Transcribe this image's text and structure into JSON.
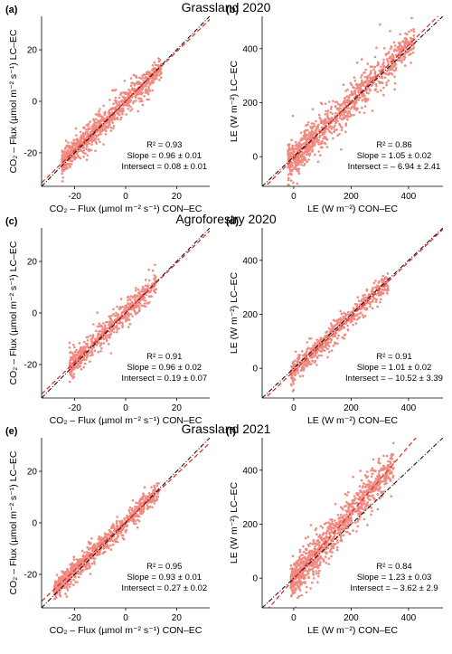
{
  "rows": [
    {
      "title": "Grassland 2020"
    },
    {
      "title": "Agroforestry 2020"
    },
    {
      "title": "Grassland 2021"
    }
  ],
  "colors": {
    "points": "#f08a80",
    "fit_line": "#e8231a",
    "one_to_one": "#000000"
  },
  "chart_data": [
    {
      "panel": "(a)",
      "type": "scatter",
      "xlabel": "CO₂ – Flux (µmol m⁻² s⁻¹) CON–EC",
      "ylabel": "CO₂ – Flux (µmol m⁻² s⁻¹) LC–EC",
      "xlim": [
        -33,
        33
      ],
      "ylim": [
        -33,
        33
      ],
      "xticks": [
        -20,
        0,
        20
      ],
      "yticks": [
        -20,
        0,
        20
      ],
      "stats": {
        "r2": "R² = 0.93",
        "slope": "Slope = 0.96 ± 0.01",
        "intersect": "Intersect = 0.08 ± 0.01"
      },
      "fit": {
        "slope": 0.96,
        "intercept": 0.08
      },
      "cloud": {
        "x_range": [
          -25,
          14
        ],
        "spread": 2.4,
        "n": 900
      }
    },
    {
      "panel": "(b)",
      "type": "scatter",
      "xlabel": "LE (W m⁻²) CON–EC",
      "ylabel": "LE (W m⁻²) LC–EC",
      "xlim": [
        -110,
        520
      ],
      "ylim": [
        -110,
        520
      ],
      "xticks": [
        0,
        200,
        400
      ],
      "yticks": [
        0,
        200,
        400
      ],
      "stats": {
        "r2": "R² = 0.86",
        "slope": "Slope = 1.05 ± 0.02",
        "intersect": "Intersect = – 6.94 ± 2.41"
      },
      "fit": {
        "slope": 1.05,
        "intercept": -6.94
      },
      "cloud": {
        "x_range": [
          -20,
          420
        ],
        "spread": 35,
        "n": 1000
      }
    },
    {
      "panel": "(c)",
      "type": "scatter",
      "xlabel": "CO₂ – Flux (µmol m⁻² s⁻¹) CON–EC",
      "ylabel": "CO₂ – Flux (µmol m⁻² s⁻¹) LC–EC",
      "xlim": [
        -33,
        33
      ],
      "ylim": [
        -33,
        33
      ],
      "xticks": [
        -20,
        0,
        20
      ],
      "yticks": [
        -20,
        0,
        20
      ],
      "stats": {
        "r2": "R² = 0.91",
        "slope": "Slope = 0.96 ± 0.02",
        "intersect": "Intersect = 0.19 ± 0.07"
      },
      "fit": {
        "slope": 0.96,
        "intercept": 0.19
      },
      "cloud": {
        "x_range": [
          -22,
          12
        ],
        "spread": 2.5,
        "n": 600
      }
    },
    {
      "panel": "(d)",
      "type": "scatter",
      "xlabel": "LE (W m⁻²) CON–EC",
      "ylabel": "LE (W m⁻²) LC–EC",
      "xlim": [
        -110,
        520
      ],
      "ylim": [
        -110,
        520
      ],
      "xticks": [
        0,
        200,
        400
      ],
      "yticks": [
        0,
        200,
        400
      ],
      "stats": {
        "r2": "R² = 0.91",
        "slope": "Slope = 1.01 ± 0.02",
        "intersect": "Intersect = – 10.52 ± 3.39"
      },
      "fit": {
        "slope": 1.01,
        "intercept": -10.52
      },
      "cloud": {
        "x_range": [
          -10,
          330
        ],
        "spread": 22,
        "n": 600
      }
    },
    {
      "panel": "(e)",
      "type": "scatter",
      "xlabel": "CO₂ – Flux (µmol m⁻² s⁻¹) CON–EC",
      "ylabel": "CO₂ – Flux (µmol m⁻² s⁻¹) LC–EC",
      "xlim": [
        -33,
        33
      ],
      "ylim": [
        -33,
        33
      ],
      "xticks": [
        -20,
        0,
        20
      ],
      "yticks": [
        -20,
        0,
        20
      ],
      "stats": {
        "r2": "R² = 0.95",
        "slope": "Slope = 0.93 ± 0.01",
        "intersect": "Intersect = 0.27 ± 0.02"
      },
      "fit": {
        "slope": 0.93,
        "intercept": 0.27
      },
      "cloud": {
        "x_range": [
          -28,
          13
        ],
        "spread": 1.9,
        "n": 900
      }
    },
    {
      "panel": "(f)",
      "type": "scatter",
      "xlabel": "LE (W m⁻²) CON–EC",
      "ylabel": "LE (W m⁻²) LC–EC",
      "xlim": [
        -110,
        520
      ],
      "ylim": [
        -110,
        520
      ],
      "xticks": [
        0,
        200,
        400
      ],
      "yticks": [
        0,
        200,
        400
      ],
      "stats": {
        "r2": "R² = 0.84",
        "slope": "Slope = 1.23 ± 0.03",
        "intersect": "Intersect = – 3.62 ± 2.9"
      },
      "fit": {
        "slope": 1.23,
        "intercept": -3.62
      },
      "cloud": {
        "x_range": [
          -10,
          350
        ],
        "spread": 35,
        "n": 1000
      }
    }
  ]
}
